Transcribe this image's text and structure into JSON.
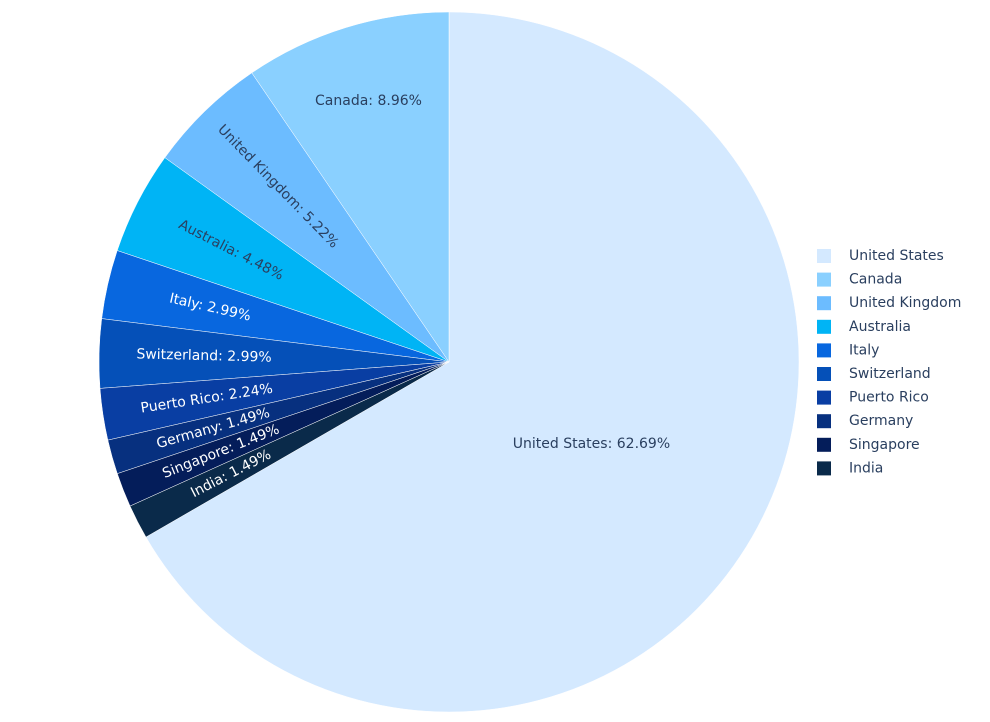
{
  "chart_data": {
    "type": "pie",
    "categories": [
      "United States",
      "Canada",
      "United Kingdom",
      "Australia",
      "Italy",
      "Switzerland",
      "Puerto Rico",
      "Germany",
      "Singapore",
      "India"
    ],
    "values": [
      62.69,
      8.96,
      5.22,
      4.48,
      2.99,
      2.99,
      2.24,
      1.49,
      1.49,
      1.49
    ],
    "value_labels": [
      "United States: 62.69%",
      "Canada: 8.96%",
      "United Kingdom: 5.22%",
      "Australia: 4.48%",
      "Italy: 2.99%",
      "Switzerland: 2.99%",
      "Puerto Rico: 2.24%",
      "Germany: 1.49%",
      "Singapore: 1.49%",
      "India: 1.49%"
    ],
    "colors": [
      "#d4e9ff",
      "#8ad0ff",
      "#6cbcff",
      "#00b4f5",
      "#0867df",
      "#0550b8",
      "#093ea3",
      "#07307f",
      "#041d5a",
      "#0a2a4a"
    ],
    "direction": "counterclockwise",
    "legend": "right"
  }
}
